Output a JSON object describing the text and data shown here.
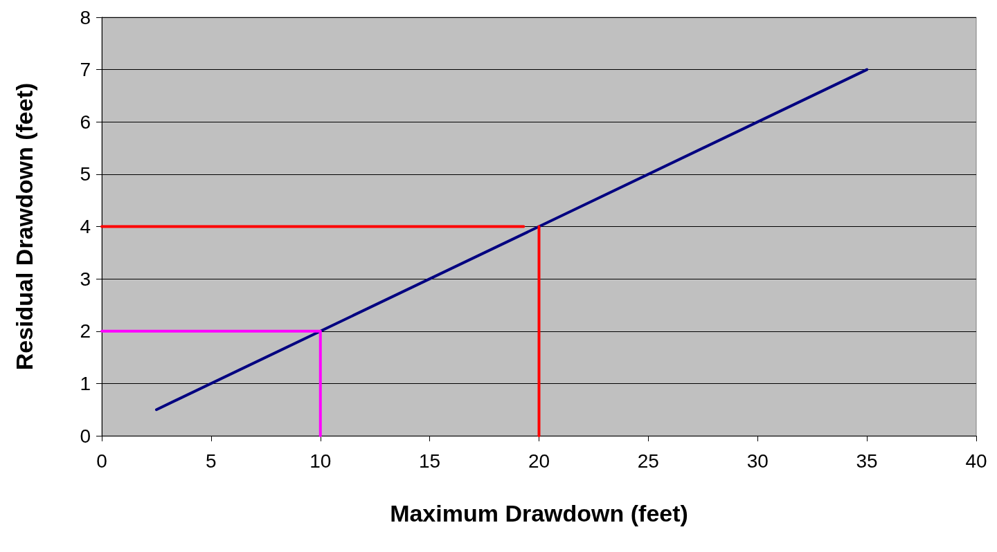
{
  "chart_data": {
    "type": "line",
    "xlabel": "Maximum Drawdown (feet)",
    "ylabel": "Residual Drawdown (feet)",
    "xlim": [
      0,
      40
    ],
    "xticks": [
      0,
      5,
      10,
      15,
      20,
      25,
      30,
      35,
      40
    ],
    "ylim": [
      0,
      8
    ],
    "yticks": [
      0,
      1,
      2,
      3,
      4,
      5,
      6,
      7,
      8
    ],
    "grid": "y",
    "marker": "none",
    "line_style": "solid",
    "series": [
      {
        "color": "#000080",
        "x": [
          2.5,
          35
        ],
        "values": [
          0.5,
          7
        ]
      },
      {
        "color": "#ff0000",
        "x": [
          0,
          19.3,
          null,
          20,
          20
        ],
        "values": [
          4,
          4,
          null,
          4,
          0
        ]
      },
      {
        "color": "#ff00ff",
        "x": [
          0,
          10,
          10
        ],
        "values": [
          2,
          2,
          0
        ]
      }
    ]
  }
}
